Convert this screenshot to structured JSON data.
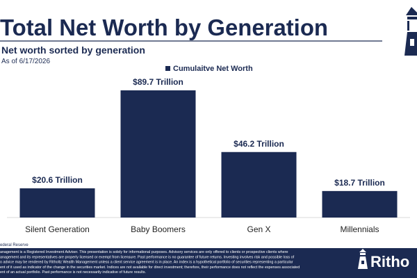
{
  "chart_data": {
    "type": "bar",
    "title": "Total Net Worth by Generation",
    "subtitle": "Net worth sorted by generation",
    "date_note": "As of 6/17/2026",
    "categories": [
      "Silent Generation",
      "Baby Boomers",
      "Gen X",
      "Millennials"
    ],
    "series": [
      {
        "name": "Cumulaitve Net Worth",
        "color": "#1b2a52",
        "values": [
          20.6,
          89.7,
          46.2,
          18.7
        ],
        "value_labels": [
          "$20.6 Trillion",
          "$89.7 Trillion",
          "$46.2 Trillion",
          "$18.7 Trillion"
        ]
      }
    ],
    "legend": "top"
  },
  "footer": {
    "source": "ederal Reserve",
    "disclaimer": [
      "anagement is a Registered Investment Adviser. This presentation is solely for informational purposes. Advisory services are only offered to clients or prospective clients where",
      "anagement and its representatives are properly licensed or exempt from licensure. Past performance is no guarantee of future returns. Investing involves risk and possible loss of",
      "o advice may be rendered by Ritholtz Wealth Management unless a client service agreement is in place. An index is a hypothetical portfolio of securities representing a particular",
      "ent of it used as indicator of the change in the securities market. Indices are not available for direct investment; therefore, their performance does not reflect the expenses associated",
      "ent of an actual portfolio. Past performance is not necessarily indicative of future results."
    ],
    "logo": "Ritho"
  }
}
